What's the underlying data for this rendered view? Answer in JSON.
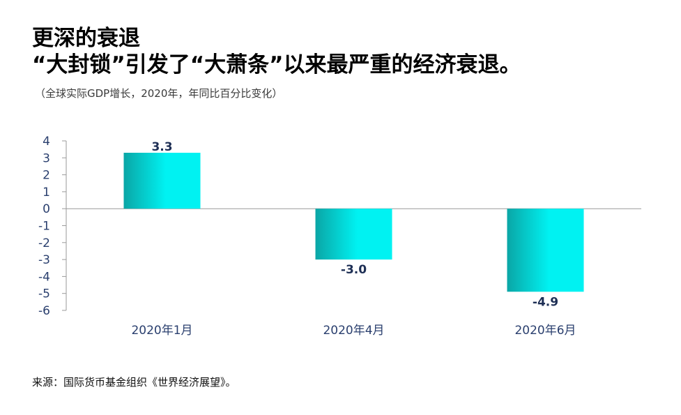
{
  "header": {
    "title_line1": "更深的衰退",
    "title_line2": "“大封锁”引发了“大萧条”以来最严重的经济衰退。",
    "subtitle": "（全球实际GDP增长，2020年，年同比百分比变化）"
  },
  "source": "来源：国际货币基金组织《世界经济展望》。",
  "colors": {
    "bar_dark": "#0aa6a6",
    "bar_light": "#00f2f2",
    "axis": "#9a9a9a",
    "tick_text": "#2a3f6e",
    "label_text": "#1e2f55"
  },
  "chart_data": {
    "type": "bar",
    "title": "更深的衰退",
    "xlabel": "",
    "ylabel": "",
    "categories": [
      "2020年1月",
      "2020年4月",
      "2020年6月"
    ],
    "values": [
      3.3,
      -3.0,
      -4.9
    ],
    "data_labels": [
      "3.3",
      "-3.0",
      "-4.9"
    ],
    "ylim": [
      -6,
      4
    ],
    "yticks": [
      4,
      3,
      2,
      1,
      0,
      -1,
      -2,
      -3,
      -4,
      -5,
      -6
    ],
    "grid": false,
    "legend": "none"
  }
}
